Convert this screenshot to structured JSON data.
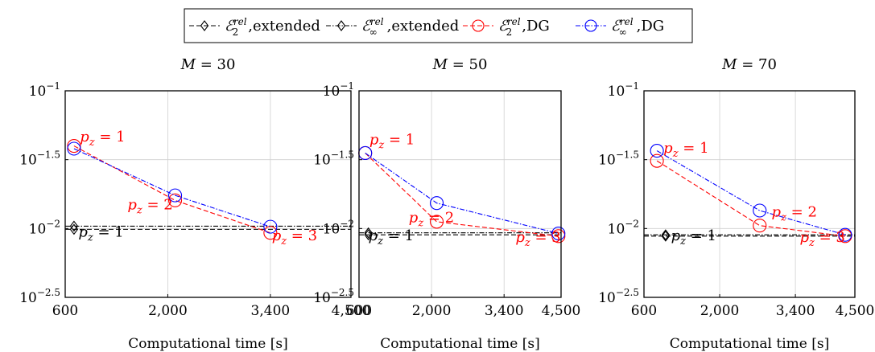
{
  "legend": {
    "items": [
      {
        "label": "ℰ₂^rel,extended",
        "base": "ℰ",
        "sub": "2",
        "sup": "rel",
        "suffix": ",extended",
        "color": "#000000",
        "marker": "diamond",
        "dash": "dashed"
      },
      {
        "label": "ℰ∞^rel,extended",
        "base": "ℰ",
        "sub": "∞",
        "sup": "rel",
        "suffix": ",extended",
        "color": "#000000",
        "marker": "diamond",
        "dash": "dashdot"
      },
      {
        "label": "ℰ₂^rel,DG",
        "base": "ℰ",
        "sub": "2",
        "sup": "rel",
        "suffix": ",DG",
        "color": "#ff0000",
        "marker": "circle",
        "dash": "dashed"
      },
      {
        "label": "ℰ∞^rel,DG",
        "base": "ℰ",
        "sub": "∞",
        "sup": "rel",
        "suffix": ",DG",
        "color": "#0000ff",
        "marker": "circle",
        "dash": "dashdot"
      }
    ]
  },
  "chart_data": [
    {
      "type": "line",
      "title": "M = 30",
      "xlabel": "Computational time [s]",
      "ylabel": "",
      "xlim": [
        600,
        4500
      ],
      "ylim_log10": [
        -2.5,
        -1
      ],
      "yscale": "log",
      "xticks": [
        600,
        2000,
        3400,
        4500
      ],
      "xtick_labels": [
        "600",
        "2,000",
        "3,400",
        "4,500"
      ],
      "yticks_log10": [
        -2.5,
        -2,
        -1.5,
        -1
      ],
      "ytick_labels": [
        {
          "base": "10",
          "exp": "−2.5"
        },
        {
          "base": "10",
          "exp": "−2"
        },
        {
          "base": "10",
          "exp": "−1.5"
        },
        {
          "base": "10",
          "exp": "−1"
        }
      ],
      "series": [
        {
          "name": "ℰ₂^rel,extended",
          "x": [
            720
          ],
          "y": [
            0.00986
          ],
          "extend_to": 4500
        },
        {
          "name": "ℰ∞^rel,extended",
          "x": [
            720
          ],
          "y": [
            0.0104
          ],
          "extend_to": 4500
        },
        {
          "name": "ℰ₂^rel,DG",
          "x": [
            720,
            2100,
            3400
          ],
          "y": [
            0.0398,
            0.016,
            0.0093
          ]
        },
        {
          "name": "ℰ∞^rel,DG",
          "x": [
            720,
            2100,
            3400
          ],
          "y": [
            0.038,
            0.0174,
            0.0103
          ]
        }
      ],
      "annotations": [
        {
          "text": "p_z = 1",
          "color": "#ff0000",
          "x": 800,
          "y": 0.043
        },
        {
          "text": "p_z = 2",
          "color": "#ff0000",
          "x": 1450,
          "y": 0.0138
        },
        {
          "text": "p_z = 3",
          "color": "#ff0000",
          "x": 3420,
          "y": 0.0082
        },
        {
          "text": "p_z = 1",
          "color": "#000000",
          "x": 780,
          "y": 0.0087
        }
      ]
    },
    {
      "type": "line",
      "title": "M = 50",
      "xlabel": "Computational time [s]",
      "ylabel": "",
      "xlim": [
        600,
        4500
      ],
      "ylim_log10": [
        -2.5,
        -1
      ],
      "yscale": "log",
      "xticks": [
        600,
        2000,
        3400,
        4500
      ],
      "xtick_labels": [
        "600",
        "2,000",
        "3,400",
        "4,500"
      ],
      "yticks_log10": [
        -2.5,
        -2,
        -1.5,
        -1
      ],
      "ytick_labels": [
        {
          "base": "10",
          "exp": "−2.5"
        },
        {
          "base": "10",
          "exp": "−2"
        },
        {
          "base": "10",
          "exp": "−1.5"
        },
        {
          "base": "10",
          "exp": "−1"
        }
      ],
      "series": [
        {
          "name": "ℰ₂^rel,extended",
          "x": [
            780
          ],
          "y": [
            0.009
          ],
          "extend_to": 4500
        },
        {
          "name": "ℰ∞^rel,extended",
          "x": [
            780
          ],
          "y": [
            0.0093
          ],
          "extend_to": 4500
        },
        {
          "name": "ℰ₂^rel,DG",
          "x": [
            720,
            2100,
            4450
          ],
          "y": [
            0.0353,
            0.0112,
            0.0088
          ]
        },
        {
          "name": "ℰ∞^rel,DG",
          "x": [
            720,
            2100,
            4450
          ],
          "y": [
            0.0353,
            0.0153,
            0.0092
          ]
        }
      ],
      "annotations": [
        {
          "text": "p_z = 1",
          "color": "#ff0000",
          "x": 800,
          "y": 0.041
        },
        {
          "text": "p_z = 2",
          "color": "#ff0000",
          "x": 1560,
          "y": 0.0111
        },
        {
          "text": "p_z = 3",
          "color": "#ff0000",
          "x": 3620,
          "y": 0.008
        },
        {
          "text": "p_z = 1",
          "color": "#000000",
          "x": 780,
          "y": 0.0082
        }
      ]
    },
    {
      "type": "line",
      "title": "M = 70",
      "xlabel": "Computational time [s]",
      "ylabel": "",
      "xlim": [
        600,
        4500
      ],
      "ylim_log10": [
        -2.5,
        -1
      ],
      "yscale": "log",
      "xticks": [
        600,
        2000,
        3400,
        4500
      ],
      "xtick_labels": [
        "600",
        "2,000",
        "3,400",
        "4,500"
      ],
      "yticks_log10": [
        -2.5,
        -2,
        -1.5,
        -1
      ],
      "ytick_labels": [
        {
          "base": "10",
          "exp": "−2.5"
        },
        {
          "base": "10",
          "exp": "−2"
        },
        {
          "base": "10",
          "exp": "−1.5"
        },
        {
          "base": "10",
          "exp": "−1"
        }
      ],
      "series": [
        {
          "name": "ℰ₂^rel,extended",
          "x": [
            1000
          ],
          "y": [
            0.0088
          ],
          "extend_to": 4500
        },
        {
          "name": "ℰ∞^rel,extended",
          "x": [
            1000
          ],
          "y": [
            0.009
          ],
          "extend_to": 4500
        },
        {
          "name": "ℰ₂^rel,DG",
          "x": [
            840,
            2740,
            4320
          ],
          "y": [
            0.031,
            0.0105,
            0.0088
          ]
        },
        {
          "name": "ℰ∞^rel,DG",
          "x": [
            840,
            2740,
            4320
          ],
          "y": [
            0.0367,
            0.0135,
            0.009
          ]
        }
      ],
      "annotations": [
        {
          "text": "p_z = 1",
          "color": "#ff0000",
          "x": 960,
          "y": 0.0355
        },
        {
          "text": "p_z = 2",
          "color": "#ff0000",
          "x": 2960,
          "y": 0.0122
        },
        {
          "text": "p_z = 3",
          "color": "#ff0000",
          "x": 3480,
          "y": 0.008
        },
        {
          "text": "p_z = 1",
          "color": "#000000",
          "x": 1100,
          "y": 0.0082
        }
      ]
    }
  ]
}
